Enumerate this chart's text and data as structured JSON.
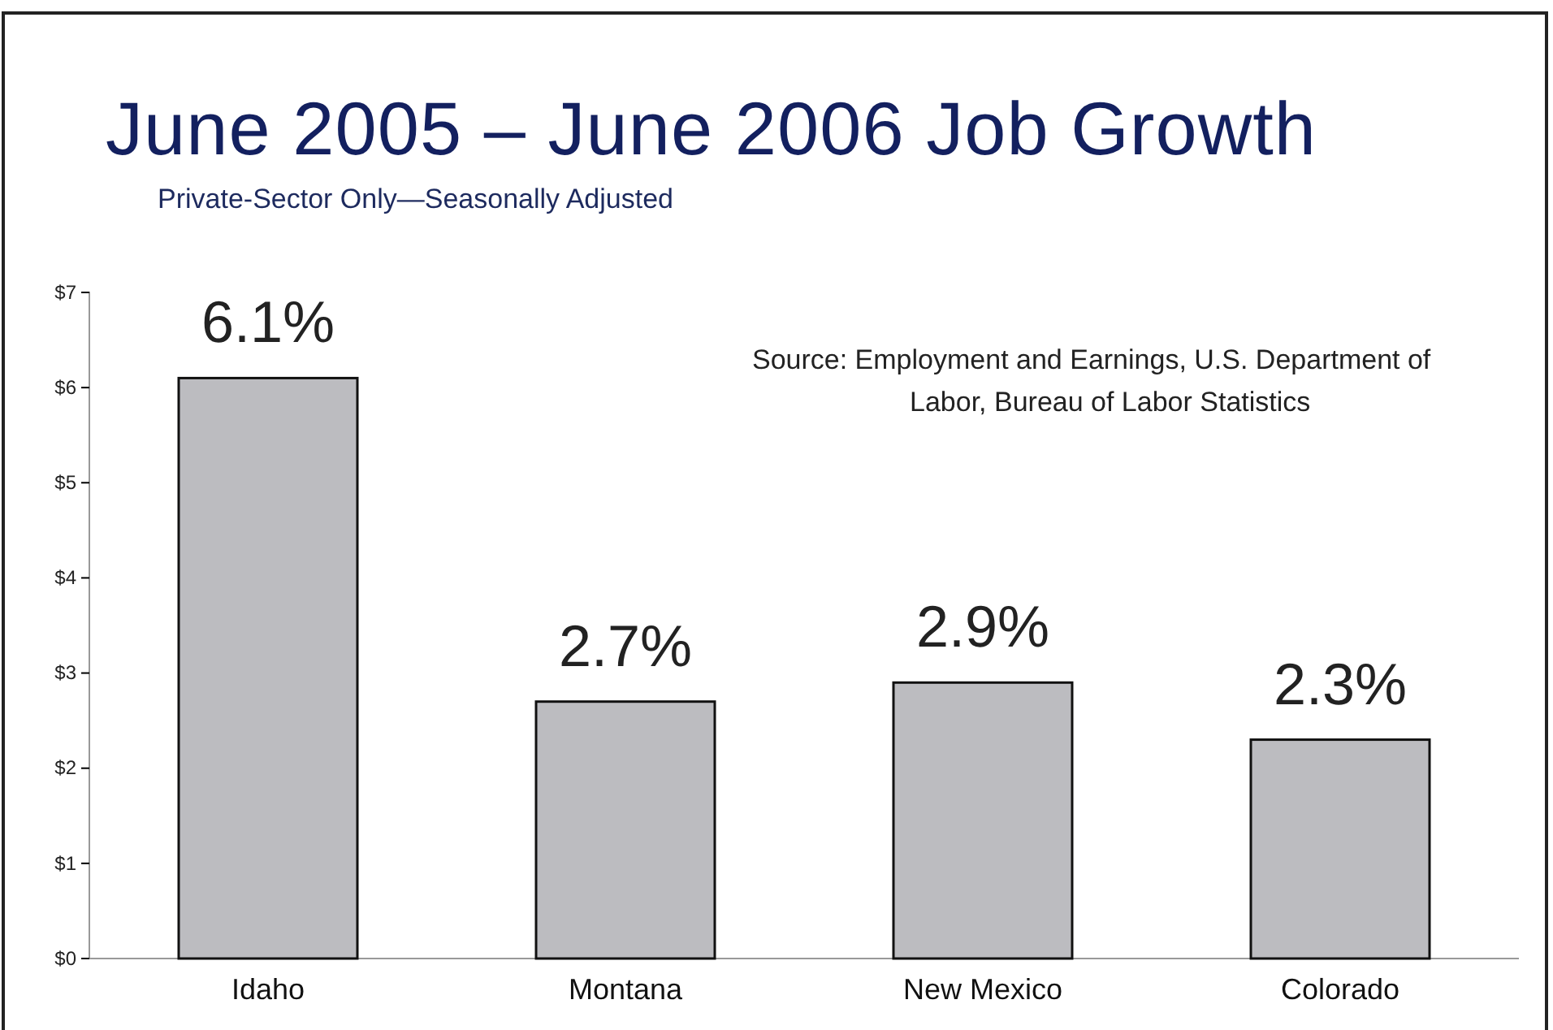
{
  "chart_data": {
    "type": "bar",
    "title": "June 2005 – June 2006 Job Growth",
    "subtitle": "Private-Sector Only—Seasonally Adjusted",
    "annotations": [
      "Source:   Employment and Earnings, U.S. Department of Labor, Bureau of Labor Statistics"
    ],
    "categories": [
      "Idaho",
      "Montana",
      "New Mexico",
      "Colorado"
    ],
    "values": [
      6.1,
      2.7,
      2.9,
      2.3
    ],
    "value_labels": [
      "6.1%",
      "2.7%",
      "2.9%",
      "2.3%"
    ],
    "color": "#bcbcc0",
    "ylim": [
      0,
      7
    ],
    "yticks": [
      {
        "value": 0,
        "label": "$0"
      },
      {
        "value": 1,
        "label": "$1"
      },
      {
        "value": 2,
        "label": "$2"
      },
      {
        "value": 3,
        "label": "$3"
      },
      {
        "value": 4,
        "label": "$4"
      },
      {
        "value": 5,
        "label": "$5"
      },
      {
        "value": 6,
        "label": "$6"
      },
      {
        "value": 7,
        "label": "$7"
      }
    ],
    "grid": false
  }
}
